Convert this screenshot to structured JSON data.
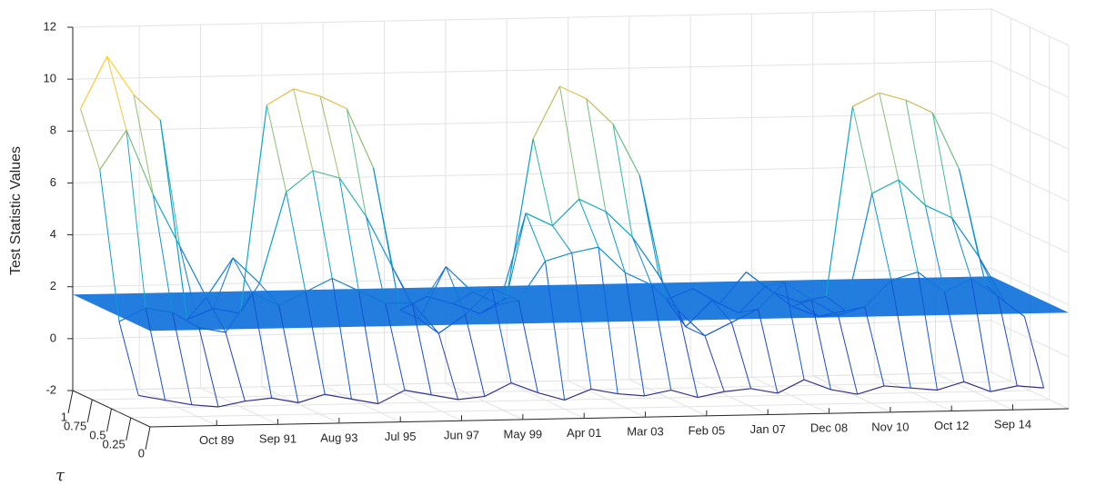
{
  "chart_data": {
    "type": "mesh3d",
    "zlabel": "Test Statistic Values",
    "taulabel": "τ",
    "x": [
      0,
      10,
      20,
      30,
      40,
      50,
      60,
      70,
      80,
      90,
      100,
      110,
      120,
      130,
      140,
      150,
      160,
      170,
      180,
      190,
      200,
      210,
      220,
      230,
      240,
      250,
      260,
      270,
      280,
      290,
      300,
      310,
      320,
      330,
      340
    ],
    "xlim": [
      0,
      345
    ],
    "xticks": [
      {
        "value": 25,
        "label": "Oct 89"
      },
      {
        "value": 48,
        "label": "Sep 91"
      },
      {
        "value": 71,
        "label": "Aug 93"
      },
      {
        "value": 94,
        "label": "Jul 95"
      },
      {
        "value": 117,
        "label": "Jun 97"
      },
      {
        "value": 140,
        "label": "May 99"
      },
      {
        "value": 163,
        "label": "Apr 01"
      },
      {
        "value": 186,
        "label": "Mar 03"
      },
      {
        "value": 209,
        "label": "Feb 05"
      },
      {
        "value": 232,
        "label": "Jan 07"
      },
      {
        "value": 255,
        "label": "Dec 08"
      },
      {
        "value": 278,
        "label": "Nov 10"
      },
      {
        "value": 301,
        "label": "Oct 12"
      },
      {
        "value": 324,
        "label": "Sep 14"
      }
    ],
    "taulim": [
      0,
      1
    ],
    "tauticks": [
      0,
      0.25,
      0.5,
      0.75,
      1
    ],
    "zlim": [
      -2,
      12
    ],
    "zticks": [
      -2,
      0,
      2,
      4,
      6,
      8,
      10,
      12
    ],
    "grid": true,
    "colormap": "parula",
    "plane_color": "#0a6fdc",
    "plane_z": 1.7,
    "series": [
      {
        "tau": 0.9,
        "values": [
          9,
          11,
          9.5,
          8.5,
          0.8,
          1.2,
          1,
          9,
          9.6,
          9.3,
          8.8,
          6.5,
          1,
          1.5,
          1.2,
          0.8,
          1.4,
          7.5,
          9.5,
          9,
          8,
          6,
          1.2,
          1.6,
          1,
          2.2,
          1.4,
          1,
          1.2,
          8.5,
          9,
          8.7,
          8.2,
          6,
          1.5
        ]
      },
      {
        "tau": 0.65,
        "values": [
          7,
          8.5,
          6,
          4,
          2,
          3.5,
          2.5,
          6,
          6.8,
          6.5,
          5,
          3,
          1,
          3,
          2,
          1.5,
          5,
          4.5,
          5.5,
          5,
          4,
          2.5,
          0.5,
          1.5,
          1,
          2,
          1.2,
          0.8,
          1,
          5.5,
          6,
          5,
          4.5,
          3,
          1.2
        ]
      },
      {
        "tau": 0.4,
        "values": [
          1.5,
          2,
          1.8,
          1.2,
          1,
          2.5,
          2,
          2.5,
          3,
          2.5,
          2,
          2,
          0.8,
          1.5,
          2.5,
          2,
          3.5,
          3.8,
          4,
          3,
          2.5,
          1.5,
          0.5,
          1,
          1.5,
          2.5,
          1.8,
          1.2,
          1.5,
          2.5,
          2.8,
          2,
          2.5,
          1.8,
          1
        ]
      },
      {
        "tau": 0.15,
        "values": [
          -1,
          -1.2,
          -1.4,
          -1.5,
          -1.3,
          -1.2,
          -1.4,
          -1.1,
          -1.3,
          -1.5,
          -1,
          -1.2,
          -1.4,
          -1.3,
          -0.8,
          -1.2,
          -1.5,
          -1.1,
          -1.3,
          -1.4,
          -1.2,
          -1.5,
          -1.3,
          -1.2,
          -1.4,
          -0.9,
          -1.3,
          -1.5,
          -1.2,
          -1.3,
          -1.4,
          -1.1,
          -1.5,
          -1.3,
          -1.4
        ]
      }
    ]
  }
}
